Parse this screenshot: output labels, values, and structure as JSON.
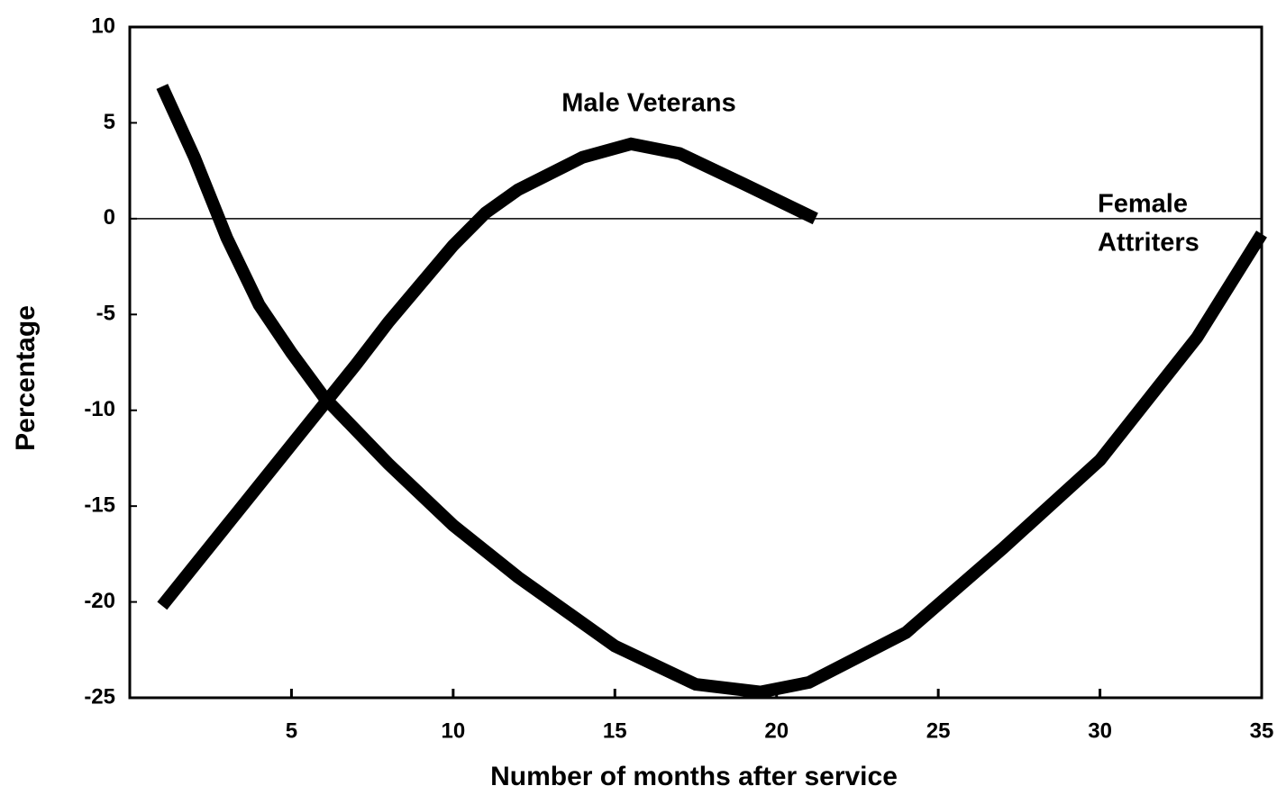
{
  "chart_data": {
    "type": "line",
    "xlabel": "Number of months after service",
    "ylabel": "Percentage",
    "xlim": [
      0,
      35
    ],
    "ylim": [
      -25,
      10
    ],
    "xticks": [
      5,
      10,
      15,
      20,
      25,
      30,
      35
    ],
    "yticks": [
      10,
      5,
      0,
      -5,
      -10,
      -15,
      -20,
      -25
    ],
    "zero_line": true,
    "series": [
      {
        "name": "Male Veterans",
        "color": "#000000",
        "x": [
          1,
          3,
          5,
          7,
          8,
          10,
          11,
          12,
          14,
          15.5,
          17,
          19,
          21.2
        ],
        "values": [
          -20.2,
          -16,
          -11.8,
          -7.6,
          -5.4,
          -1.4,
          0.3,
          1.5,
          3.2,
          3.9,
          3.4,
          1.8,
          0
        ]
      },
      {
        "name": "Female Attriters",
        "color": "#000000",
        "x": [
          1,
          2,
          3,
          4,
          5,
          6,
          8,
          10,
          12,
          15,
          17.5,
          19.5,
          21,
          24,
          27,
          30,
          33,
          35
        ],
        "values": [
          6.9,
          3.2,
          -1,
          -4.5,
          -7,
          -9.3,
          -12.8,
          -16,
          -18.7,
          -22.3,
          -24.3,
          -24.7,
          -24.2,
          -21.6,
          -17.2,
          -12.6,
          -6.2,
          -0.8
        ]
      }
    ],
    "annotations": [
      {
        "lines": [
          "Male Veterans"
        ]
      },
      {
        "lines": [
          "Female",
          "Attriters"
        ]
      }
    ]
  }
}
